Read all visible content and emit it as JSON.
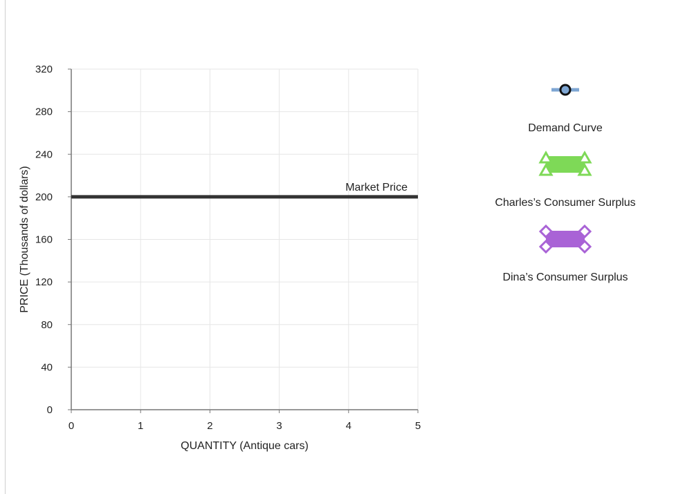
{
  "chart_data": {
    "type": "line",
    "xlabel": "QUANTITY (Antique cars)",
    "ylabel": "PRICE (Thousands of dollars)",
    "xlim": [
      0,
      5
    ],
    "ylim": [
      0,
      320
    ],
    "xticks": [
      0,
      1,
      2,
      3,
      4,
      5
    ],
    "yticks": [
      0,
      40,
      80,
      120,
      160,
      200,
      240,
      280,
      320
    ],
    "grid": true,
    "series": [
      {
        "name": "Market Price",
        "x": [
          0,
          5
        ],
        "y": [
          200,
          200
        ],
        "color": "#333333"
      }
    ],
    "annotations": [
      {
        "text": "Market Price",
        "x": 5,
        "y": 200
      }
    ],
    "legend": {
      "placement": "right",
      "items": [
        {
          "label": "Demand Curve",
          "marker": "circle",
          "line_color": "#7ea6d3",
          "fill_color": "#7ea6d3"
        },
        {
          "label": "Charles’s Consumer Surplus",
          "marker": "triangle",
          "fill_color": "#7ed957",
          "stroke_color": "#7ed957"
        },
        {
          "label": "Dina’s Consumer Surplus",
          "marker": "diamond",
          "fill_color": "#a963d6",
          "stroke_color": "#a963d6"
        }
      ]
    }
  }
}
